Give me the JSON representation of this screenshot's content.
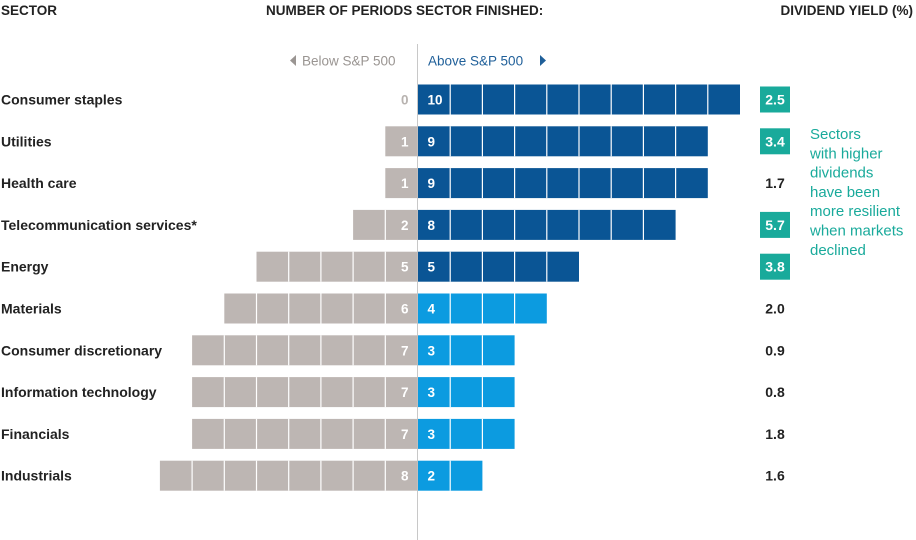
{
  "header": {
    "sector": "SECTOR",
    "periods": "NUMBER OF PERIODS SECTOR FINISHED:",
    "yield": "DIVIDEND YIELD (%)"
  },
  "direction": {
    "below": "Below S&P 500",
    "above": "Above S&P 500"
  },
  "note": [
    "Sectors",
    "with higher",
    "dividends",
    "have been",
    "more resilient",
    "when markets",
    "declined"
  ],
  "colors": {
    "below": "#bdb6b3",
    "above_dark": "#0a5595",
    "above_light": "#0c9be0",
    "highlight": "#19aa9b",
    "axis": "#c8c8c8",
    "text": "#222222"
  },
  "chart_data": {
    "type": "bar",
    "title": "",
    "categories": [
      "Consumer staples",
      "Utilities",
      "Health care",
      "Telecommunication services*",
      "Energy",
      "Materials",
      "Consumer discretionary",
      "Information technology",
      "Financials",
      "Industrials"
    ],
    "series": [
      {
        "name": "Below S&P 500",
        "values": [
          0,
          1,
          1,
          2,
          5,
          6,
          7,
          7,
          7,
          8
        ]
      },
      {
        "name": "Above S&P 500",
        "values": [
          10,
          9,
          9,
          8,
          5,
          4,
          3,
          3,
          3,
          2
        ]
      }
    ],
    "dividend_yield": [
      "2.5",
      "3.4",
      "1.7",
      "5.7",
      "3.8",
      "2.0",
      "0.9",
      "0.8",
      "1.8",
      "1.6"
    ],
    "yield_highlighted": [
      true,
      true,
      false,
      true,
      true,
      false,
      false,
      false,
      false,
      false
    ],
    "above_dark_rows": [
      true,
      true,
      true,
      true,
      true,
      false,
      false,
      false,
      false,
      false
    ]
  }
}
